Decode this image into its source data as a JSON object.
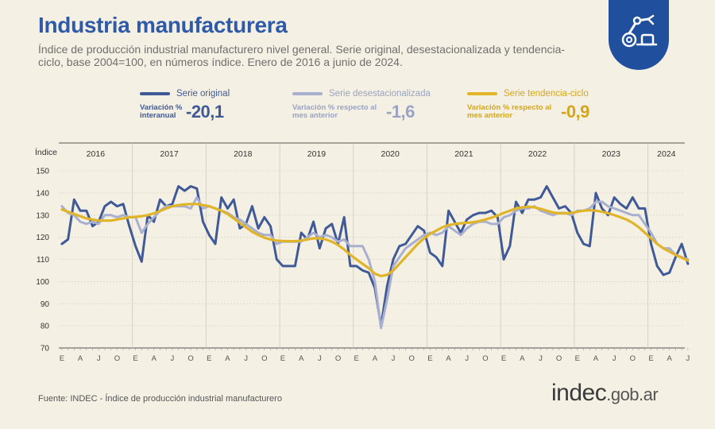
{
  "header": {
    "title": "Industria manufacturera",
    "subtitle": "Índice de producción industrial manufacturero nivel general. Serie original, desestacionalizada y tendencia-ciclo, base 2004=100, en números índice. Enero de 2016 a junio de 2024.",
    "badge_icon": "robot-arm-icon"
  },
  "legend": {
    "original": {
      "name": "Serie original",
      "desc": "Variación % interanual",
      "value": "-20,1",
      "color": "#3f5a96"
    },
    "desest": {
      "name": "Serie desestacionalizada",
      "desc": "Variación % respecto al mes anterior",
      "value": "-1,6",
      "color": "#a9b0cf"
    },
    "tend": {
      "name": "Serie tendencia-ciclo",
      "desc": "Variación % respecto al mes anterior",
      "value": "-0,9",
      "color": "#e0b52a"
    }
  },
  "footer": {
    "source": "Fuente: INDEC - Índice de producción industrial manufacturero",
    "brand": "indec",
    "brand_tld": ".gob.ar"
  },
  "chart_data": {
    "type": "line",
    "ylabel": "Índice",
    "ylim": [
      70,
      150
    ],
    "yticks": [
      70,
      80,
      90,
      100,
      110,
      120,
      130,
      140,
      150
    ],
    "grid": true,
    "years": [
      "2016",
      "2017",
      "2018",
      "2019",
      "2020",
      "2021",
      "2022",
      "2023",
      "2024"
    ],
    "month_ticks": [
      "E",
      "A",
      "J",
      "O"
    ],
    "last_year_ticks": [
      "E",
      "A",
      "J"
    ],
    "x_start": "2016-01",
    "x_end": "2024-06",
    "series": [
      {
        "name": "Serie original",
        "color": "#3f5a96",
        "values": [
          117,
          119,
          137,
          132,
          132,
          125,
          127,
          134,
          136,
          134,
          135,
          125,
          116,
          109,
          130,
          127,
          137,
          134,
          135,
          143,
          141,
          143,
          142,
          127,
          121,
          117,
          138,
          133,
          137,
          124,
          126,
          134,
          124,
          129,
          125,
          110,
          107,
          107,
          107,
          122,
          119,
          127,
          115,
          124,
          126,
          117,
          129,
          107,
          107,
          105,
          104,
          97,
          80,
          98,
          110,
          116,
          117,
          121,
          125,
          123,
          113,
          111,
          107,
          132,
          127,
          122,
          128,
          130,
          131,
          131,
          132,
          129,
          110,
          116,
          136,
          131,
          137,
          137,
          138,
          143,
          138,
          133,
          134,
          131,
          122,
          117,
          116,
          140,
          133,
          130,
          138,
          135,
          133,
          138,
          133,
          133,
          117,
          107,
          103,
          104,
          111,
          117,
          108
        ]
      },
      {
        "name": "Serie desestacionalizada",
        "color": "#a9b0cf",
        "values": [
          134,
          131,
          130,
          127,
          126,
          127,
          126,
          130,
          130,
          129,
          130,
          129,
          129,
          122,
          126,
          129,
          132,
          134,
          134,
          134,
          134,
          133,
          138,
          133,
          134,
          133,
          132,
          131,
          129,
          128,
          126,
          124,
          122,
          121,
          121,
          117,
          118,
          118,
          118,
          118,
          120,
          122,
          120,
          121,
          120,
          118,
          119,
          116,
          116,
          116,
          110,
          100,
          79,
          92,
          107,
          111,
          115,
          117,
          119,
          121,
          122,
          121,
          122,
          125,
          123,
          121,
          124,
          126,
          127,
          127,
          126,
          126,
          129,
          130,
          132,
          133,
          133,
          134,
          132,
          131,
          130,
          131,
          131,
          130,
          132,
          132,
          133,
          136,
          136,
          134,
          133,
          132,
          131,
          130,
          130,
          126,
          122,
          117,
          115,
          115,
          112,
          111,
          110
        ]
      },
      {
        "name": "Serie tendencia-ciclo",
        "color": "#e0b52a",
        "values": [
          132.5,
          131.5,
          130.5,
          129.5,
          128.5,
          128,
          127.5,
          127.5,
          127.5,
          128,
          128.5,
          129,
          129.2,
          129.5,
          130,
          130.8,
          131.8,
          133,
          134,
          134.5,
          134.8,
          135,
          135,
          134.5,
          134,
          133,
          132,
          130.5,
          128.5,
          126.5,
          124.5,
          122.5,
          121,
          119.8,
          119,
          118.5,
          118.3,
          118.2,
          118.2,
          118.5,
          119,
          119.5,
          119.5,
          119,
          118,
          116.5,
          114.5,
          112,
          110,
          108,
          106,
          103.5,
          102.5,
          103,
          105,
          108,
          111,
          114,
          117,
          119.5,
          121.5,
          123,
          124.5,
          125.5,
          126,
          126.3,
          126.5,
          126.8,
          127.3,
          128,
          128.8,
          129.8,
          131,
          132,
          133,
          133.5,
          133.8,
          133.5,
          132.8,
          132,
          131.2,
          130.8,
          130.8,
          131,
          131.5,
          132,
          132.2,
          132,
          131.5,
          130.8,
          130,
          129,
          128,
          126.5,
          124.5,
          122,
          119.5,
          117,
          115,
          113.5,
          112,
          110.8,
          109.5
        ]
      }
    ]
  }
}
